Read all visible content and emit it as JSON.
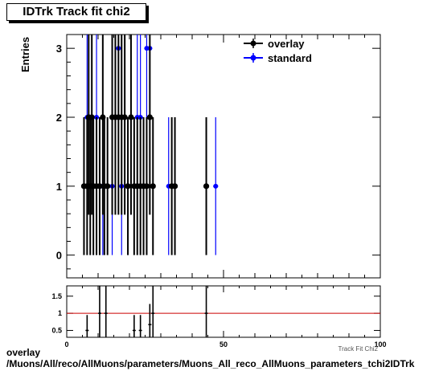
{
  "title": "IDTrk Track fit chi2",
  "caption_line1": "overlay",
  "caption_line2": "/Muons/All/reco/AllMuons/parameters/Muons_All_reco_AllMuons_parameters_tchi2IDTrk",
  "chart_data": [
    {
      "type": "scatter",
      "ylabel": "Entries",
      "xlabel": "Track Fit Chi2",
      "xlim": [
        0,
        100
      ],
      "ylim": [
        -0.33,
        3.2
      ],
      "yticks": [
        0,
        1,
        2,
        3
      ],
      "legend_position": "top-right",
      "series": [
        {
          "name": "overlay",
          "color": "#000000",
          "points": [
            {
              "x": 5.5,
              "y": 1
            },
            {
              "x": 6.5,
              "y": 1
            },
            {
              "x": 7.0,
              "y": 2
            },
            {
              "x": 7.5,
              "y": 1
            },
            {
              "x": 8.0,
              "y": 2
            },
            {
              "x": 8.5,
              "y": 1
            },
            {
              "x": 9.5,
              "y": 1
            },
            {
              "x": 10.5,
              "y": 1
            },
            {
              "x": 11.5,
              "y": 2
            },
            {
              "x": 12.0,
              "y": 1
            },
            {
              "x": 13.0,
              "y": 1
            },
            {
              "x": 14.5,
              "y": 2
            },
            {
              "x": 15.5,
              "y": 2
            },
            {
              "x": 16.5,
              "y": 2
            },
            {
              "x": 17.5,
              "y": 2
            },
            {
              "x": 18.5,
              "y": 2
            },
            {
              "x": 19.5,
              "y": 1
            },
            {
              "x": 20.5,
              "y": 2
            },
            {
              "x": 21.5,
              "y": 1
            },
            {
              "x": 22.5,
              "y": 1
            },
            {
              "x": 23.5,
              "y": 1
            },
            {
              "x": 24.5,
              "y": 1
            },
            {
              "x": 25.5,
              "y": 1
            },
            {
              "x": 26.5,
              "y": 2
            },
            {
              "x": 27.5,
              "y": 1
            },
            {
              "x": 33.5,
              "y": 1
            },
            {
              "x": 34.5,
              "y": 1
            },
            {
              "x": 44.5,
              "y": 1
            }
          ]
        },
        {
          "name": "standard",
          "color": "#0000ff",
          "points": [
            {
              "x": 6.5,
              "y": 2
            },
            {
              "x": 8.5,
              "y": 1
            },
            {
              "x": 9.5,
              "y": 2
            },
            {
              "x": 11.5,
              "y": 1
            },
            {
              "x": 14.5,
              "y": 1
            },
            {
              "x": 16.5,
              "y": 3
            },
            {
              "x": 17.5,
              "y": 1
            },
            {
              "x": 19.5,
              "y": 1
            },
            {
              "x": 20.5,
              "y": 2
            },
            {
              "x": 22.5,
              "y": 2
            },
            {
              "x": 23.5,
              "y": 2
            },
            {
              "x": 25.5,
              "y": 3
            },
            {
              "x": 26.5,
              "y": 3
            },
            {
              "x": 32.5,
              "y": 1
            },
            {
              "x": 47.5,
              "y": 1
            }
          ]
        }
      ]
    },
    {
      "type": "scatter",
      "xlim": [
        0,
        100
      ],
      "ylim": [
        0.3,
        1.8
      ],
      "yticks": [
        0.5,
        1,
        1.5
      ],
      "xticks": [
        0,
        50,
        100
      ],
      "reference_line": {
        "y": 1,
        "color": "#cc0000"
      },
      "points": [
        {
          "x": 6.5,
          "y": 0.5
        },
        {
          "x": 10.5,
          "y": 1.0
        },
        {
          "x": 12.5,
          "y": 1.0
        },
        {
          "x": 21.5,
          "y": 0.5
        },
        {
          "x": 23.5,
          "y": 0.5
        },
        {
          "x": 26.5,
          "y": 0.67
        },
        {
          "x": 27.5,
          "y": 1.0
        },
        {
          "x": 44.5,
          "y": 1.0
        }
      ]
    }
  ]
}
